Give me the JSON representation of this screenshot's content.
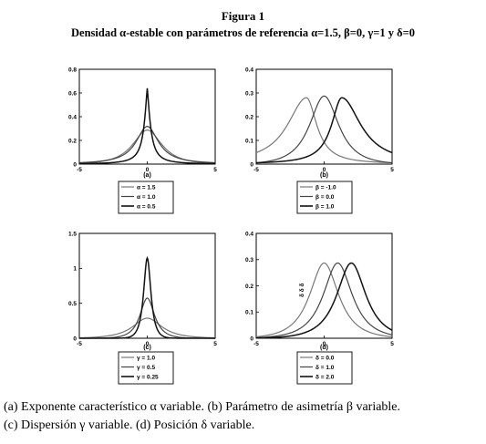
{
  "title": {
    "figure": "Figura 1",
    "subtitle": "Densidad α-estable con parámetros de referencia α=1.5, β=0, γ=1 y δ=0"
  },
  "caption": {
    "line1": "(a) Exponente característico α variable. (b) Parámetro de asimetría β variable.",
    "line2": "(c) Dispersión γ variable. (d) Posición δ variable."
  },
  "colors": {
    "axis": "#000000",
    "curve_dark": "#111111",
    "curve_mid": "#444444",
    "curve_light": "#777777"
  },
  "chart_data": [
    {
      "type": "line",
      "label": "(a)",
      "xlim": [
        -5,
        5
      ],
      "ylim": [
        0,
        0.8
      ],
      "xticks": [
        -5,
        0,
        5
      ],
      "yticks": [
        0,
        0.2,
        0.4,
        0.6,
        0.8
      ],
      "xtick_labels": [
        "-5",
        "0",
        "5"
      ],
      "ytick_labels": [
        "0",
        "0.2",
        "0.4",
        "0.6",
        "0.8"
      ],
      "series": [
        {
          "name": "α = 1.5",
          "family": "stable",
          "alpha": 1.5,
          "beta": 0,
          "gamma": 1,
          "delta": 0,
          "peak": 0.287
        },
        {
          "name": "α = 1.0",
          "family": "stable",
          "alpha": 1.0,
          "beta": 0,
          "gamma": 1,
          "delta": 0,
          "peak": 0.318
        },
        {
          "name": "α = 0.5",
          "family": "stable",
          "alpha": 0.5,
          "beta": 0,
          "gamma": 1,
          "delta": 0,
          "peak": 0.64
        }
      ],
      "legend": [
        "α = 1.5",
        "α = 1.0",
        "α = 0.5"
      ],
      "legend_placement": "below"
    },
    {
      "type": "line",
      "label": "(b)",
      "xlim": [
        -5,
        5
      ],
      "ylim": [
        0,
        0.4
      ],
      "xticks": [
        -5,
        0,
        5
      ],
      "yticks": [
        0,
        0.1,
        0.2,
        0.3,
        0.4
      ],
      "xtick_labels": [
        "-5",
        "0",
        "5"
      ],
      "ytick_labels": [
        "0",
        "0.1",
        "0.2",
        "0.3",
        "0.4"
      ],
      "series": [
        {
          "name": "β = -1.0",
          "family": "stable",
          "alpha": 1.5,
          "beta": -1.0,
          "gamma": 1,
          "delta": 0,
          "peak": 0.28,
          "mode": -1.3
        },
        {
          "name": "β = 0.0",
          "family": "stable",
          "alpha": 1.5,
          "beta": 0.0,
          "gamma": 1,
          "delta": 0,
          "peak": 0.287,
          "mode": 0
        },
        {
          "name": "β = 1.0",
          "family": "stable",
          "alpha": 1.5,
          "beta": 1.0,
          "gamma": 1,
          "delta": 0,
          "peak": 0.28,
          "mode": 1.3
        }
      ],
      "legend": [
        "β = -1.0",
        "β = 0.0",
        "β = 1.0"
      ],
      "legend_placement": "below"
    },
    {
      "type": "line",
      "label": "(c)",
      "xlim": [
        -5,
        5
      ],
      "ylim": [
        0,
        1.5
      ],
      "xticks": [
        -5,
        0,
        5
      ],
      "yticks": [
        0,
        0.5,
        1,
        1.5
      ],
      "xtick_labels": [
        "-5",
        "0",
        "5"
      ],
      "ytick_labels": [
        "0",
        "0.5",
        "1",
        "1.5"
      ],
      "series": [
        {
          "name": "γ = 1.0",
          "family": "stable",
          "alpha": 1.5,
          "beta": 0,
          "gamma": 1.0,
          "delta": 0,
          "peak": 0.287
        },
        {
          "name": "γ = 0.5",
          "family": "stable",
          "alpha": 1.5,
          "beta": 0,
          "gamma": 0.5,
          "delta": 0,
          "peak": 0.574
        },
        {
          "name": "γ = 0.25",
          "family": "stable",
          "alpha": 1.5,
          "beta": 0,
          "gamma": 0.25,
          "delta": 0,
          "peak": 1.148
        }
      ],
      "legend": [
        "γ = 1.0",
        "γ = 0.5",
        "γ = 0.25"
      ],
      "legend_placement": "below"
    },
    {
      "type": "line",
      "label": "(d)",
      "xlim": [
        -5,
        5
      ],
      "ylim": [
        0,
        0.4
      ],
      "xticks": [
        -5,
        0,
        5
      ],
      "yticks": [
        0,
        0.1,
        0.2,
        0.3,
        0.4
      ],
      "xtick_labels": [
        "-5",
        "0",
        "5"
      ],
      "ytick_labels": [
        "0",
        "0.1",
        "0.2",
        "0.3",
        "0.4"
      ],
      "series": [
        {
          "name": "δ = 0.0",
          "family": "stable",
          "alpha": 1.5,
          "beta": 0,
          "gamma": 1,
          "delta": 0.0,
          "peak": 0.287
        },
        {
          "name": "δ = 1.0",
          "family": "stable",
          "alpha": 1.5,
          "beta": 0,
          "gamma": 1,
          "delta": 1.0,
          "peak": 0.287
        },
        {
          "name": "δ = 2.0",
          "family": "stable",
          "alpha": 1.5,
          "beta": 0,
          "gamma": 1,
          "delta": 2.0,
          "peak": 0.287
        }
      ],
      "annotation": "δ δ δ",
      "legend": [
        "δ = 0.0",
        "δ = 1.0",
        "δ = 2.0"
      ],
      "legend_placement": "below"
    }
  ]
}
